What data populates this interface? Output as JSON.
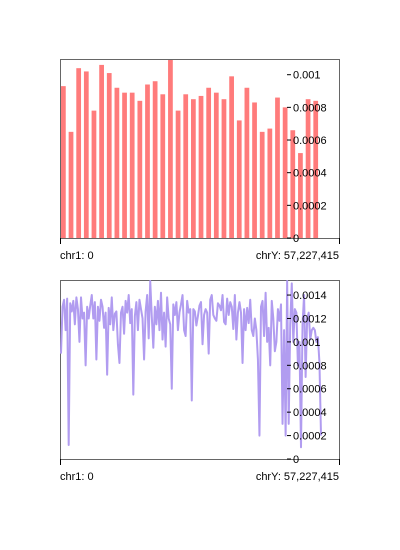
{
  "colors": {
    "bar": "#ff7b7b",
    "line": "#b19cf0",
    "axis": "#000000"
  },
  "chart_data": [
    {
      "type": "bar",
      "x_start_label": "chr1: 0",
      "x_end_label": "chrY: 57,227,415",
      "ylim": [
        0,
        0.00109
      ],
      "y_ticks": [
        {
          "value": 0.001,
          "label": "0.001"
        },
        {
          "value": 0.0008,
          "label": "0.0008"
        },
        {
          "value": 0.0006,
          "label": "0.0006"
        },
        {
          "value": 0.0004,
          "label": "0.0004"
        },
        {
          "value": 0.0002,
          "label": "0.0002"
        },
        {
          "value": 0,
          "label": "0"
        }
      ],
      "values": [
        0.00093,
        0.00065,
        0.00104,
        0.00102,
        0.00078,
        0.00106,
        0.00101,
        0.00092,
        0.00089,
        0.00089,
        0.00084,
        0.00094,
        0.00096,
        0.00088,
        0.00109,
        0.00078,
        0.00088,
        0.00085,
        0.00087,
        0.00092,
        0.00089,
        0.00085,
        0.00099,
        0.00072,
        0.00092,
        0.00083,
        0.00065,
        0.00067,
        0.00086,
        0.0008,
        0.00066,
        0.00052,
        0.00085,
        0.00084
      ]
    },
    {
      "type": "line",
      "x_start_label": "chr1: 0",
      "x_end_label": "chrY: 57,227,415",
      "ylim": [
        0,
        0.00152
      ],
      "y_ticks": [
        {
          "value": 0.0014,
          "label": "0.0014"
        },
        {
          "value": 0.0012,
          "label": "0.0012"
        },
        {
          "value": 0.001,
          "label": "0.001"
        },
        {
          "value": 0.0008,
          "label": "0.0008"
        },
        {
          "value": 0.0006,
          "label": "0.0006"
        },
        {
          "value": 0.0004,
          "label": "0.0004"
        },
        {
          "value": 0.0002,
          "label": "0.0002"
        },
        {
          "value": 0,
          "label": "0"
        }
      ],
      "values": [
        0.0009,
        0.0013,
        0.00136,
        0.0011,
        0.00137,
        0.00012,
        0.00133,
        0.00126,
        0.00135,
        0.00115,
        0.00138,
        0.00128,
        0.001,
        0.00138,
        0.0012,
        0.00125,
        0.0008,
        0.0013,
        0.0012,
        0.00131,
        0.0014,
        0.0012,
        0.00134,
        0.00085,
        0.0013,
        0.00118,
        0.00136,
        0.0013,
        0.00112,
        0.00125,
        0.00072,
        0.00129,
        0.00115,
        0.00138,
        0.0011,
        0.00124,
        0.00126,
        0.00098,
        0.00082,
        0.00125,
        0.0013,
        0.00107,
        0.00135,
        0.00125,
        0.0014,
        0.00116,
        0.00128,
        0.00055,
        0.00122,
        0.00134,
        0.0011,
        0.00136,
        0.00128,
        0.0012,
        0.00085,
        0.00126,
        0.0014,
        0.00103,
        0.00152,
        0.00122,
        0.00095,
        0.0013,
        0.00115,
        0.00135,
        0.0011,
        0.00142,
        0.00102,
        0.00125,
        0.00096,
        0.00138,
        0.0012,
        0.00115,
        0.0006,
        0.00132,
        0.00123,
        0.00134,
        0.0011,
        0.00125,
        0.00132,
        0.0014,
        0.0011,
        0.00105,
        0.00135,
        0.00125,
        0.00128,
        0.0005,
        0.00128,
        0.00126,
        0.00114,
        0.00122,
        0.00131,
        0.00134,
        0.00098,
        0.00123,
        0.00128,
        0.00125,
        0.0009,
        0.00136,
        0.0014,
        0.00123,
        0.0012,
        0.00118,
        0.00133,
        0.00131,
        0.00127,
        0.0014,
        0.00117,
        0.00115,
        0.00137,
        0.00123,
        0.00134,
        0.0013,
        0.00111,
        0.0014,
        0.00102,
        0.00125,
        0.00134,
        0.00125,
        0.00082,
        0.00128,
        0.0011,
        0.00129,
        0.00116,
        0.00136,
        0.0011,
        0.00105,
        0.0012,
        0.0011,
        0.00085,
        0.0002,
        0.0013,
        0.00135,
        0.00105,
        0.00142,
        0.001,
        0.00112,
        0.0008,
        0.00135,
        0.0012,
        0.00092,
        0.001,
        0.00128,
        0.00118,
        0.00132,
        0.0003,
        0.0011,
        0.0002,
        0.00152,
        0.0003,
        0.00115,
        0.0015,
        0.001,
        0.00128,
        0.00125,
        0.0008,
        0.001,
        0.0001,
        0.00115,
        0.0014,
        0.0007,
        0.0012,
        0.00125,
        0.00102,
        0.0011,
        0.00112,
        0.0011,
        0.001,
        0.00104,
        0.00082,
        0.0002
      ]
    }
  ]
}
